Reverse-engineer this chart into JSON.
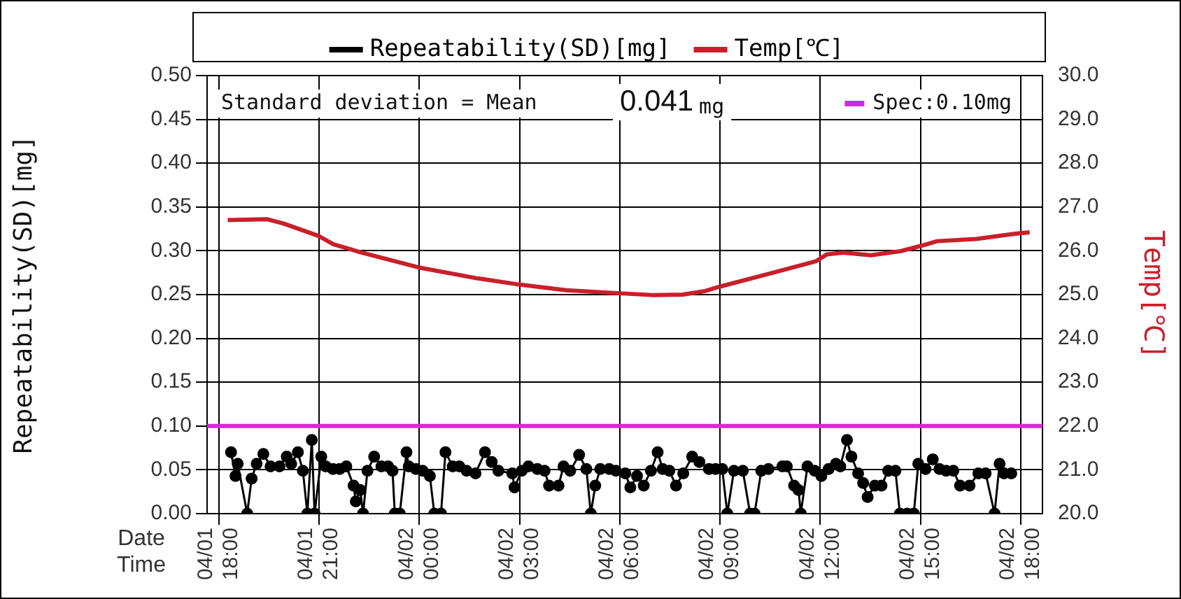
{
  "chart_data": {
    "type": "line",
    "xlabel": "Date Time",
    "ylabel": "Repeatability(SD)[mg]",
    "y2label": "Temp[℃]",
    "annotations": [
      "Standard deviation = Mean",
      "0.041 mg"
    ],
    "xlim": [
      "--04-01T17:39",
      "--04-02T18:39"
    ],
    "xticks": [
      {
        "value": "--04-01T18:00",
        "label": "04/01 18:00"
      },
      {
        "value": "--04-01T21:00",
        "label": "04/01 21:00"
      },
      {
        "value": "--04-02T00:00",
        "label": "04/02 00:00"
      },
      {
        "value": "--04-02T03:00",
        "label": "04/02 03:00"
      },
      {
        "value": "--04-02T06:00",
        "label": "04/02 06:00"
      },
      {
        "value": "--04-02T09:00",
        "label": "04/02 09:00"
      },
      {
        "value": "--04-02T12:00",
        "label": "04/02 12:00"
      },
      {
        "value": "--04-02T15:00",
        "label": "04/02 15:00"
      },
      {
        "value": "--04-02T18:00",
        "label": "04/02 18:00"
      }
    ],
    "ylim": [
      0,
      0.5
    ],
    "yticks": [
      {
        "value": 0,
        "label": "0.00"
      },
      {
        "value": 0.05,
        "label": "0.05"
      },
      {
        "value": 0.1,
        "label": "0.10"
      },
      {
        "value": 0.15,
        "label": "0.15"
      },
      {
        "value": 0.2,
        "label": "0.20"
      },
      {
        "value": 0.25,
        "label": "0.25"
      },
      {
        "value": 0.3,
        "label": "0.30"
      },
      {
        "value": 0.35,
        "label": "0.35"
      },
      {
        "value": 0.4,
        "label": "0.40"
      },
      {
        "value": 0.45,
        "label": "0.45"
      },
      {
        "value": 0.5,
        "label": "0.50"
      }
    ],
    "y2lim": [
      20,
      30
    ],
    "y2ticks": [
      {
        "value": 20,
        "label": "20.0"
      },
      {
        "value": 21,
        "label": "21.0"
      },
      {
        "value": 22,
        "label": "22.0"
      },
      {
        "value": 23,
        "label": "23.0"
      },
      {
        "value": 24,
        "label": "24.0"
      },
      {
        "value": 25,
        "label": "25.0"
      },
      {
        "value": 26,
        "label": "26.0"
      },
      {
        "value": 27,
        "label": "27.0"
      },
      {
        "value": 28,
        "label": "28.0"
      },
      {
        "value": 29,
        "label": "29.0"
      },
      {
        "value": 30,
        "label": "30.0"
      }
    ],
    "grid": true,
    "legend": "top",
    "ref_lines": [
      {
        "axis": "y",
        "value": 0.1,
        "label": "Spec:0.10mg",
        "color": "#d62ad6"
      }
    ],
    "series": [
      {
        "name": "Repeatability(SD)[mg]",
        "color": "#000000",
        "marker": "circle",
        "x": [
          "--04-01T18:22",
          "--04-01T18:30",
          "--04-01T18:34",
          "--04-01T18:51",
          "--04-01T18:59",
          "--04-01T19:08",
          "--04-01T19:20",
          "--04-01T19:33",
          "--04-01T19:49",
          "--04-01T20:02",
          "--04-01T20:10",
          "--04-01T20:22",
          "--04-01T20:31",
          "--04-01T20:39",
          "--04-01T20:47",
          "--04-01T20:52",
          "--04-01T21:04",
          "--04-01T21:12",
          "--04-01T21:25",
          "--04-01T21:37",
          "--04-01T21:49",
          "--04-01T22:02",
          "--04-01T22:06",
          "--04-01T22:14",
          "--04-01T22:19",
          "--04-01T22:27",
          "--04-01T22:39",
          "--04-01T22:52",
          "--04-01T23:04",
          "--04-01T23:12",
          "--04-01T23:16",
          "--04-01T23:25",
          "--04-01T23:37",
          "--04-01T23:41",
          "--04-01T23:54",
          "--04-02T00:06",
          "--04-02T00:19",
          "--04-02T00:27",
          "--04-02T00:39",
          "--04-02T00:47",
          "--04-02T01:00",
          "--04-02T01:12",
          "--04-02T01:25",
          "--04-02T01:41",
          "--04-02T01:58",
          "--04-02T02:10",
          "--04-02T02:22",
          "--04-02T02:47",
          "--04-02T02:51",
          "--04-02T03:04",
          "--04-02T03:16",
          "--04-02T03:32",
          "--04-02T03:45",
          "--04-02T03:53",
          "--04-02T04:10",
          "--04-02T04:19",
          "--04-02T04:31",
          "--04-02T04:47",
          "--04-02T05:00",
          "--04-02T05:08",
          "--04-02T05:16",
          "--04-02T05:25",
          "--04-02T05:41",
          "--04-02T05:53",
          "--04-02T06:10",
          "--04-02T06:19",
          "--04-02T06:31",
          "--04-02T06:43",
          "--04-02T06:56",
          "--04-02T07:08",
          "--04-02T07:17",
          "--04-02T07:29",
          "--04-02T07:41",
          "--04-02T07:54",
          "--04-02T08:10",
          "--04-02T08:23",
          "--04-02T08:40",
          "--04-02T08:52",
          "--04-02T09:04",
          "--04-02T09:13",
          "--04-02T09:25",
          "--04-02T09:41",
          "--04-02T09:54",
          "--04-02T10:02",
          "--04-02T10:14",
          "--04-02T10:27",
          "--04-02T10:52",
          "--04-02T11:00",
          "--04-02T11:13",
          "--04-02T11:21",
          "--04-02T11:25",
          "--04-02T11:37",
          "--04-02T11:50",
          "--04-02T12:02",
          "--04-02T12:15",
          "--04-02T12:28",
          "--04-02T12:36",
          "--04-02T12:48",
          "--04-02T12:56",
          "--04-02T13:08",
          "--04-02T13:17",
          "--04-02T13:25",
          "--04-02T13:38",
          "--04-02T13:50",
          "--04-02T14:02",
          "--04-02T14:15",
          "--04-02T14:23",
          "--04-02T14:36",
          "--04-02T14:48",
          "--04-02T14:56",
          "--04-02T15:09",
          "--04-02T15:22",
          "--04-02T15:34",
          "--04-02T15:46",
          "--04-02T15:59",
          "--04-02T16:11",
          "--04-02T16:28",
          "--04-02T16:44",
          "--04-02T16:57",
          "--04-02T17:13",
          "--04-02T17:22",
          "--04-02T17:30",
          "--04-02T17:43"
        ],
        "values": [
          0.07,
          0.043,
          0.057,
          0,
          0.04,
          0.057,
          0.068,
          0.054,
          0.054,
          0.065,
          0.057,
          0.07,
          0.049,
          0,
          0.084,
          0,
          0.065,
          0.054,
          0.051,
          0.051,
          0.054,
          0.032,
          0.014,
          0.027,
          0,
          0.049,
          0.065,
          0.054,
          0.054,
          0.049,
          0,
          0,
          0.07,
          0.054,
          0.051,
          0.049,
          0.043,
          0,
          0,
          0.07,
          0.054,
          0.054,
          0.049,
          0.046,
          0.07,
          0.059,
          0.049,
          0.046,
          0.03,
          0.049,
          0.054,
          0.051,
          0.049,
          0.032,
          0.032,
          0.054,
          0.049,
          0.067,
          0.051,
          0,
          0.032,
          0.051,
          0.051,
          0.049,
          0.046,
          0.03,
          0.043,
          0.032,
          0.049,
          0.07,
          0.051,
          0.049,
          0.032,
          0.046,
          0.065,
          0.059,
          0.051,
          0.051,
          0.051,
          0,
          0.049,
          0.049,
          0,
          0,
          0.049,
          0.051,
          0.054,
          0.054,
          0.032,
          0.027,
          0,
          0.054,
          0.049,
          0.043,
          0.051,
          0.057,
          0.054,
          0.084,
          0.065,
          0.046,
          0.035,
          0.019,
          0.032,
          0.032,
          0.049,
          0.049,
          0,
          0,
          0,
          0.057,
          0.051,
          0.062,
          0.051,
          0.049,
          0.049,
          0.032,
          0.032,
          0.046,
          0.046,
          0,
          0.057,
          0.046,
          0.046
        ]
      },
      {
        "name": "Temp[℃]",
        "color": "#c8202a",
        "marker": "none",
        "axis": "y2",
        "x": [
          "--04-01T18:16",
          "--04-01T19:27",
          "--04-01T19:57",
          "--04-01T20:59",
          "--04-01T21:26",
          "--04-01T22:16",
          "--04-01T23:59",
          "--04-02T01:45",
          "--04-02T02:59",
          "--04-02T04:24",
          "--04-02T06:00",
          "--04-02T06:58",
          "--04-02T07:53",
          "--04-02T08:33",
          "--04-02T08:59",
          "--04-02T10:32",
          "--04-02T11:52",
          "--04-02T12:12",
          "--04-02T12:41",
          "--04-02T13:31",
          "--04-02T14:24",
          "--04-02T15:00",
          "--04-02T15:30",
          "--04-02T16:40",
          "--04-02T17:50",
          "--04-02T18:16"
        ],
        "values": [
          26.7,
          26.72,
          26.62,
          26.34,
          26.15,
          25.96,
          25.62,
          25.37,
          25.23,
          25.1,
          25.03,
          24.99,
          25.0,
          25.08,
          25.18,
          25.49,
          25.76,
          25.92,
          25.96,
          25.9,
          25.99,
          26.11,
          26.22,
          26.27,
          26.39,
          26.42
        ]
      }
    ]
  }
}
